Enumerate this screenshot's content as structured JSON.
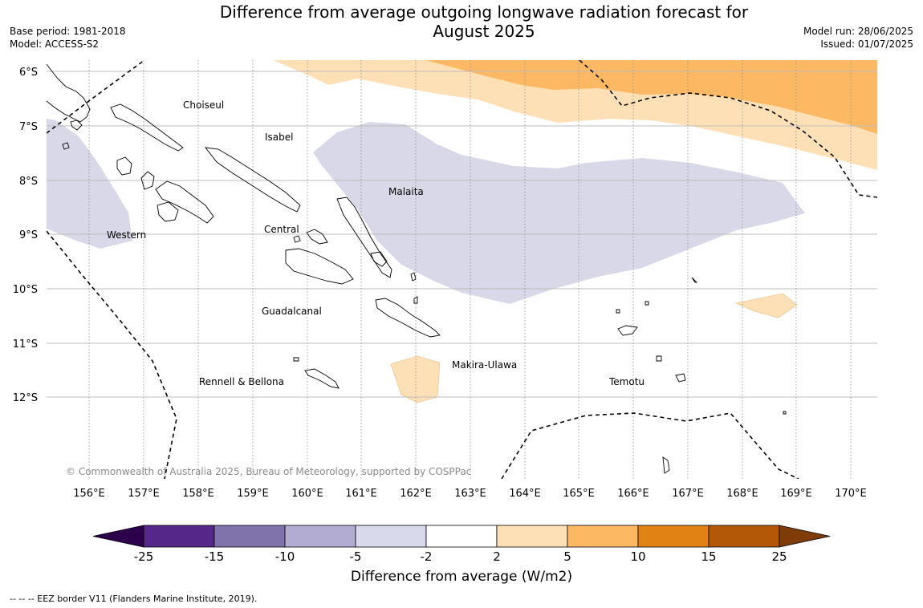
{
  "title": {
    "line1": "Difference from average outgoing longwave radiation forecast for",
    "line2": "August 2025"
  },
  "meta_left": {
    "base_period": "Base period: 1981-2018",
    "model": "Model: ACCESS-S2"
  },
  "meta_right": {
    "model_run": "Model run: 28/06/2025",
    "issued": "Issued: 01/07/2025"
  },
  "map": {
    "lat_labels": [
      "6°S",
      "7°S",
      "8°S",
      "9°S",
      "10°S",
      "11°S",
      "12°S"
    ],
    "lon_labels": [
      "156°E",
      "157°E",
      "158°E",
      "159°E",
      "160°E",
      "161°E",
      "162°E",
      "163°E",
      "164°E",
      "165°E",
      "166°E",
      "167°E",
      "168°E",
      "169°E",
      "170°E"
    ],
    "regions": {
      "choiseul": "Choiseul",
      "isabel": "Isabel",
      "malaita": "Malaita",
      "western": "Western",
      "central": "Central",
      "guadalcanal": "Guadalcanal",
      "makira_ulawa": "Makira-Ulawa",
      "rennell_bellona": "Rennell & Bellona",
      "temotu": "Temotu"
    },
    "copyright": "© Commonwealth of Australia 2025, Bureau of Meteorology, supported by COSPPac",
    "colors": {
      "neg_5_2": "#d8d8e9",
      "pos_2_5": "#fee0b6",
      "pos_5_10": "#fdb863",
      "eez_line": "#000000",
      "grid": "#bbbbbb"
    }
  },
  "colorbar": {
    "title": "Difference from average (W/m2)",
    "ticks": [
      "-25",
      "-15",
      "-10",
      "-5",
      "-2",
      "2",
      "5",
      "10",
      "15",
      "25"
    ],
    "colors": [
      "#2d004b",
      "#542788",
      "#8073ac",
      "#b2abd2",
      "#d8daeb",
      "#ffffff",
      "#fee0b6",
      "#fdb863",
      "#e08214",
      "#b35806",
      "#7f3b08"
    ]
  },
  "footer": "--  --  -- EEZ border V11 (Flanders Marine Institute, 2019)."
}
